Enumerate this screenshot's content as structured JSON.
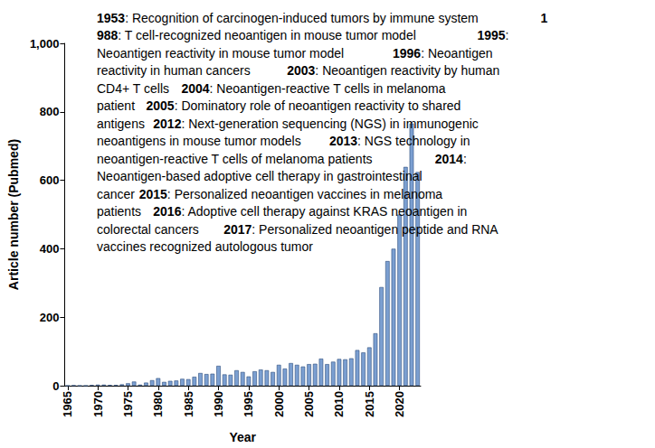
{
  "chart_data": {
    "type": "bar",
    "x_label": "Year",
    "y_label": "Article number (Pubmed)",
    "categories": [
      "1965",
      null,
      null,
      null,
      null,
      "1970",
      null,
      null,
      null,
      null,
      "1975",
      null,
      null,
      null,
      null,
      "1980",
      null,
      null,
      null,
      null,
      "1985",
      null,
      null,
      null,
      null,
      "1990",
      null,
      null,
      null,
      null,
      "1995",
      null,
      null,
      null,
      null,
      "2000",
      null,
      null,
      null,
      null,
      "2005",
      null,
      null,
      null,
      null,
      "2010",
      null,
      null,
      null,
      null,
      "2015",
      null,
      null,
      null,
      null,
      "2020",
      null,
      null,
      null
    ],
    "values": [
      0,
      1,
      0,
      0,
      2,
      3,
      3,
      2,
      2,
      4,
      7,
      12,
      3,
      9,
      16,
      22,
      11,
      14,
      15,
      20,
      19,
      26,
      37,
      34,
      35,
      58,
      33,
      32,
      45,
      40,
      27,
      42,
      47,
      45,
      40,
      61,
      50,
      66,
      61,
      56,
      63,
      64,
      79,
      63,
      70,
      78,
      77,
      80,
      104,
      97,
      112,
      153,
      288,
      364,
      400,
      500,
      639,
      766,
      624
    ],
    "color": "#7b9fd1",
    "ylim": [
      0,
      1000
    ],
    "yticks": [
      0,
      200,
      400,
      600,
      800,
      1000
    ],
    "grid": false,
    "annotations": [
      "1953: Recognition of carcinogen-induced tumors by immune system",
      "1988: T cell-recognized neoantigen in mouse tumor model",
      "1995: Neoantigen reactivity in mouse tumor model",
      "1996: Neoantigen reactivity in human cancers",
      "2003: Neoantigen reactivity by human CD4+ T cells",
      "2004: Neoantigen-reactive T cells in melanoma patient",
      "2005: Dominatory role of neoantigen reactivity to shared antigens",
      "2012: Next-generation sequencing (NGS) in immunogenic neoantigens in mouse tumor models",
      "2013: NGS technology in neoantigen-reactive T cells of melanoma patients",
      "2014: Neoantigen-based adoptive cell therapy in gastrointestinal cancer",
      "2015: Personalized neoantigen vaccines in melanoma patients",
      "2016: Adoptive cell therapy against KRAS neoantigen in colorectal cancers",
      "2017: Personalized neoantigen peptide and RNA vaccines recognized autologous tumor"
    ]
  }
}
